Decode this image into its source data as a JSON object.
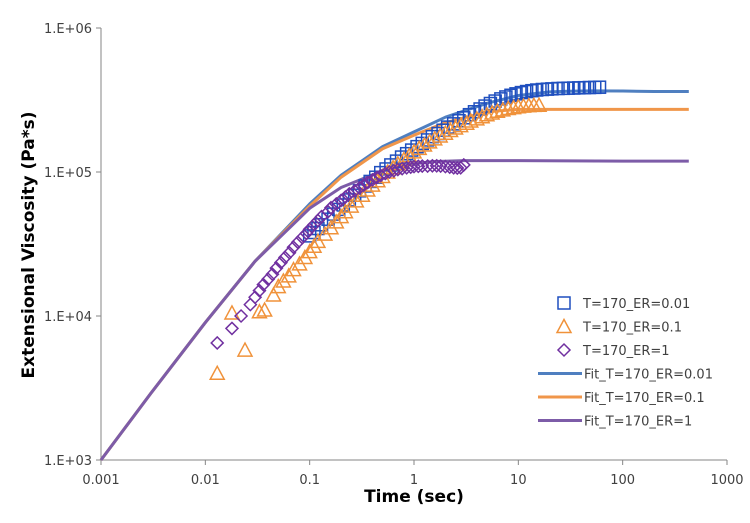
{
  "chart_data": {
    "type": "scatter",
    "title": "",
    "xlabel": "Time (sec)",
    "ylabel": "Extensional Viscosity (Pa*s)",
    "xscale": "log",
    "yscale": "log",
    "xlim": [
      0.001,
      1000
    ],
    "ylim": [
      1000,
      1000000
    ],
    "xticks": [
      "0.001",
      "0.01",
      "0.1",
      "1",
      "10",
      "100",
      "1000"
    ],
    "xtick_values": [
      0.001,
      0.01,
      0.1,
      1,
      10,
      100,
      1000
    ],
    "yticks": [
      "1.E+03",
      "1.E+04",
      "1.E+05",
      "1.E+06"
    ],
    "ytick_values": [
      1000,
      10000,
      100000,
      1000000
    ],
    "grid": false,
    "legend_position": "right",
    "series": [
      {
        "name": "T=170_ER=0.01",
        "kind": "marker",
        "marker": "square",
        "color": "#1f4fbf",
        "x": [
          0.1,
          0.11,
          0.12,
          0.13,
          0.15,
          0.17,
          0.19,
          0.21,
          0.24,
          0.27,
          0.3,
          0.34,
          0.38,
          0.43,
          0.48,
          0.54,
          0.6,
          0.68,
          0.76,
          0.85,
          0.95,
          1.07,
          1.2,
          1.35,
          1.5,
          1.7,
          1.9,
          2.1,
          2.4,
          2.7,
          3.0,
          3.4,
          3.8,
          4.3,
          4.8,
          5.4,
          6.0,
          6.8,
          7.6,
          8.5,
          9.5,
          10.7,
          12,
          13.5,
          15,
          17,
          19,
          21,
          24,
          27,
          30,
          34,
          38,
          43,
          48,
          54,
          60
        ],
        "y": [
          36000,
          38000,
          40500,
          43000,
          47000,
          51000,
          55000,
          59000,
          64000,
          69000,
          74000,
          80000,
          86000,
          92000,
          99000,
          105000,
          112000,
          119000,
          127000,
          134000,
          142000,
          150000,
          158000,
          167000,
          176000,
          185000,
          195000,
          205000,
          216000,
          227000,
          238000,
          250000,
          262000,
          274000,
          287000,
          299000,
          311000,
          322000,
          332000,
          341000,
          349000,
          356000,
          362000,
          367000,
          371000,
          374000,
          376000,
          378000,
          380000,
          381000,
          382000,
          383000,
          384000,
          385000,
          386000,
          387000,
          388000
        ]
      },
      {
        "name": "T=170_ER=0.1",
        "kind": "marker",
        "marker": "triangle",
        "color": "#f0923a",
        "x": [
          0.013,
          0.018,
          0.024,
          0.033,
          0.037,
          0.045,
          0.05,
          0.056,
          0.063,
          0.07,
          0.08,
          0.09,
          0.1,
          0.11,
          0.12,
          0.14,
          0.16,
          0.18,
          0.2,
          0.22,
          0.25,
          0.28,
          0.32,
          0.36,
          0.4,
          0.45,
          0.5,
          0.56,
          0.63,
          0.7,
          0.8,
          0.9,
          1.0,
          1.12,
          1.26,
          1.41,
          1.58,
          1.78,
          2.0,
          2.24,
          2.5,
          2.8,
          3.2,
          3.5,
          4.0,
          4.5,
          5.0,
          5.6,
          6.3,
          7.1,
          8.0,
          9.0,
          10,
          11.2,
          12.6,
          14.1,
          15.8
        ],
        "y": [
          4000,
          10500,
          5800,
          10700,
          11000,
          14000,
          16000,
          17500,
          19000,
          21000,
          23000,
          25500,
          28000,
          30500,
          33000,
          37000,
          41000,
          45000,
          49000,
          53000,
          58000,
          63000,
          69000,
          75000,
          81000,
          87000,
          93000,
          100000,
          107000,
          114000,
          122000,
          130000,
          138000,
          146000,
          154000,
          162000,
          170000,
          178000,
          186000,
          194000,
          202000,
          210000,
          218000,
          226000,
          234000,
          242000,
          250000,
          257000,
          264000,
          270000,
          276000,
          280000,
          284000,
          287000,
          289000,
          290000,
          291000
        ]
      },
      {
        "name": "T=170_ER=1",
        "kind": "marker",
        "marker": "diamond",
        "color": "#7030a0",
        "x": [
          0.013,
          0.018,
          0.022,
          0.027,
          0.03,
          0.033,
          0.036,
          0.04,
          0.044,
          0.048,
          0.053,
          0.058,
          0.064,
          0.07,
          0.077,
          0.085,
          0.093,
          0.1,
          0.11,
          0.12,
          0.13,
          0.15,
          0.16,
          0.18,
          0.2,
          0.22,
          0.24,
          0.27,
          0.3,
          0.33,
          0.36,
          0.4,
          0.44,
          0.48,
          0.53,
          0.58,
          0.64,
          0.7,
          0.77,
          0.85,
          0.93,
          1.0,
          1.1,
          1.2,
          1.35,
          1.5,
          1.65,
          1.8,
          2.0,
          2.2,
          2.4,
          2.6,
          2.8,
          3.0
        ],
        "y": [
          6500,
          8200,
          10000,
          12000,
          13500,
          15000,
          16500,
          18000,
          19500,
          21500,
          23500,
          25500,
          27500,
          30000,
          32500,
          35000,
          37500,
          40000,
          43000,
          46000,
          49000,
          53000,
          56500,
          60000,
          63500,
          67000,
          70500,
          74000,
          77500,
          81000,
          84500,
          88000,
          91500,
          94500,
          97500,
          100000,
          102000,
          104000,
          105500,
          107000,
          108000,
          109000,
          109500,
          110000,
          110000,
          110500,
          110500,
          110000,
          109000,
          108000,
          107000,
          106500,
          107000,
          112000
        ]
      },
      {
        "name": "Fit_T=170_ER=0.01",
        "kind": "line",
        "color": "#4f7fc0",
        "x": [
          0.001,
          0.003,
          0.01,
          0.03,
          0.1,
          0.2,
          0.5,
          1,
          2,
          5,
          10,
          20,
          30,
          50,
          100,
          200,
          430
        ],
        "y": [
          1000,
          2900,
          9000,
          24000,
          60000,
          95000,
          150000,
          190000,
          240000,
          300000,
          340000,
          360000,
          364000,
          366000,
          365000,
          362000,
          362000
        ]
      },
      {
        "name": "Fit_T=170_ER=0.1",
        "kind": "line",
        "color": "#f0964a",
        "x": [
          0.001,
          0.003,
          0.01,
          0.03,
          0.1,
          0.2,
          0.5,
          1,
          2,
          5,
          10,
          15,
          30,
          100,
          430
        ],
        "y": [
          1000,
          2900,
          9000,
          24000,
          58000,
          92000,
          145000,
          180000,
          220000,
          262000,
          272000,
          272000,
          272000,
          272000,
          272000
        ]
      },
      {
        "name": "Fit_T=170_ER=1",
        "kind": "line",
        "color": "#7d5ca8",
        "x": [
          0.001,
          0.003,
          0.01,
          0.03,
          0.1,
          0.2,
          0.5,
          1,
          1.5,
          3,
          10,
          100,
          430
        ],
        "y": [
          1000,
          2900,
          9000,
          24000,
          56000,
          78000,
          102000,
          114000,
          118000,
          120000,
          120000,
          119000,
          119000
        ]
      }
    ]
  }
}
